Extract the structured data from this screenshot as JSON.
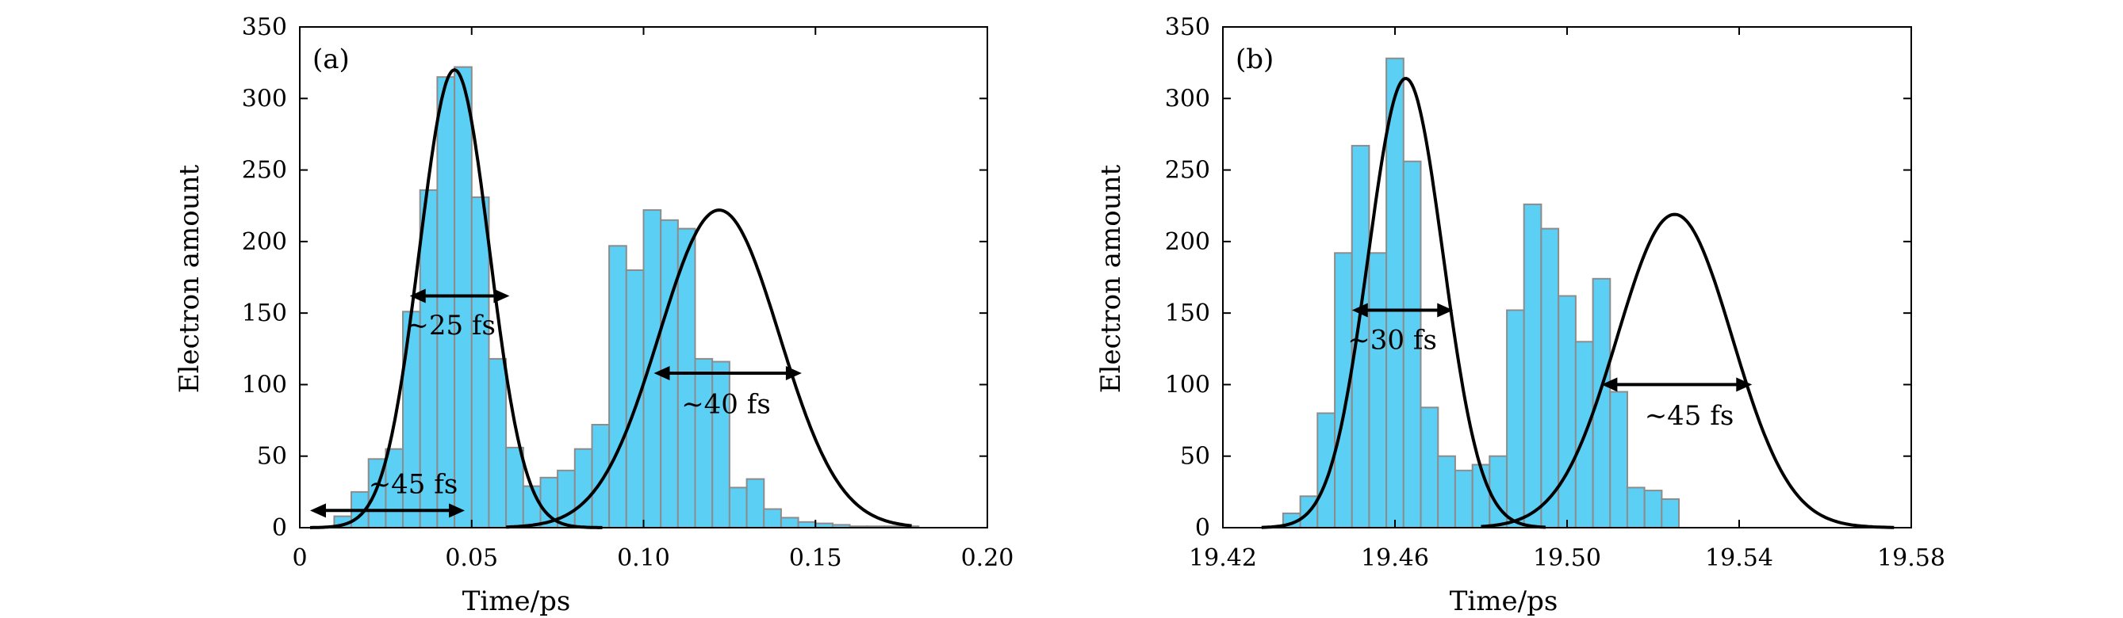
{
  "chart_data": [
    {
      "type": "bar",
      "panel_label": "(a)",
      "xlabel": "Time/ps",
      "ylabel": "Electron amount",
      "xlim": [
        0,
        0.2
      ],
      "ylim": [
        0,
        350
      ],
      "xticks": [
        0,
        0.05,
        0.1,
        0.15,
        0.2
      ],
      "xtick_labels": [
        "0",
        "0.05",
        "0.10",
        "0.15",
        "0.20"
      ],
      "yticks": [
        0,
        50,
        100,
        150,
        200,
        250,
        300,
        350
      ],
      "ytick_labels": [
        "0",
        "50",
        "100",
        "150",
        "200",
        "250",
        "300",
        "350"
      ],
      "bin_width": 0.005,
      "bin_starts": [
        0.01,
        0.015,
        0.02,
        0.025,
        0.03,
        0.035,
        0.04,
        0.045,
        0.05,
        0.055,
        0.06,
        0.065,
        0.07,
        0.075,
        0.08,
        0.085,
        0.09,
        0.095,
        0.1,
        0.105,
        0.11,
        0.115,
        0.12,
        0.125,
        0.13,
        0.135,
        0.14,
        0.145,
        0.15,
        0.155,
        0.16,
        0.165,
        0.17,
        0.175,
        0.18
      ],
      "values": [
        8,
        25,
        48,
        55,
        151,
        236,
        315,
        322,
        231,
        118,
        56,
        29,
        35,
        40,
        55,
        72,
        197,
        180,
        222,
        215,
        209,
        118,
        116,
        28,
        34,
        13,
        7,
        4,
        3,
        2,
        1,
        1,
        1,
        1,
        0
      ],
      "fits": [
        {
          "center": 0.045,
          "amplitude": 320,
          "sigma": 0.0102,
          "x_range": [
            0.003,
            0.088
          ]
        },
        {
          "center": 0.122,
          "amplitude": 222,
          "sigma": 0.0175,
          "x_range": [
            0.06,
            0.178
          ]
        }
      ],
      "annotations": [
        {
          "text": "∼25 fs",
          "x1": 0.032,
          "x2": 0.061,
          "y": 162,
          "text_x": 0.031,
          "text_y": 135
        },
        {
          "text": "∼40 fs",
          "x1": 0.103,
          "x2": 0.146,
          "y": 108,
          "text_x": 0.111,
          "text_y": 80
        },
        {
          "text": "∼45 fs",
          "x1": 0.003,
          "x2": 0.048,
          "y": 12,
          "text_x": 0.02,
          "text_y": 24
        }
      ]
    },
    {
      "type": "bar",
      "panel_label": "(b)",
      "xlabel": "Time/ps",
      "ylabel": "Electron amount",
      "xlim": [
        19.42,
        19.58
      ],
      "ylim": [
        0,
        350
      ],
      "xticks": [
        19.42,
        19.46,
        19.5,
        19.54,
        19.58
      ],
      "xtick_labels": [
        "19.42",
        "19.46",
        "19.50",
        "19.54",
        "19.58"
      ],
      "yticks": [
        0,
        50,
        100,
        150,
        200,
        250,
        300,
        350
      ],
      "ytick_labels": [
        "0",
        "50",
        "100",
        "150",
        "200",
        "250",
        "300",
        "350"
      ],
      "bin_width": 0.004,
      "bin_starts": [
        19.434,
        19.438,
        19.442,
        19.446,
        19.45,
        19.454,
        19.458,
        19.462,
        19.466,
        19.47,
        19.474,
        19.478,
        19.482,
        19.486,
        19.49,
        19.494,
        19.498,
        19.502,
        19.506,
        19.51,
        19.514,
        19.518,
        19.522,
        19.526,
        19.53,
        19.534,
        19.538,
        19.542,
        19.546,
        19.55
      ],
      "values": [
        10,
        22,
        80,
        192,
        267,
        192,
        328,
        256,
        84,
        50,
        40,
        44,
        50,
        152,
        226,
        209,
        162,
        130,
        174,
        95,
        28,
        26,
        20,
        0,
        0,
        0,
        0,
        0,
        0,
        0
      ],
      "fits": [
        {
          "center": 19.4625,
          "amplitude": 314,
          "sigma": 0.0087,
          "x_range": [
            19.429,
            19.495
          ]
        },
        {
          "center": 19.525,
          "amplitude": 219,
          "sigma": 0.0134,
          "x_range": [
            19.48,
            19.576
          ]
        }
      ],
      "annotations": [
        {
          "text": "∼30 fs",
          "x1": 19.45,
          "x2": 19.4735,
          "y": 152,
          "text_x": 19.449,
          "text_y": 125
        },
        {
          "text": "∼45 fs",
          "x1": 19.508,
          "x2": 19.543,
          "y": 100,
          "text_x": 19.518,
          "text_y": 72
        }
      ]
    }
  ]
}
